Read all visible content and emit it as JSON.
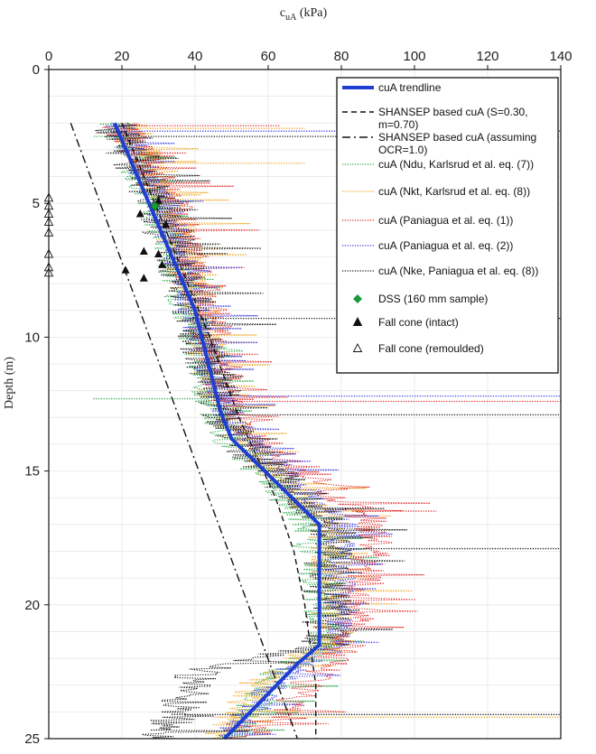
{
  "chart_data": {
    "type": "line",
    "title": "",
    "xlabel": "c",
    "xlabel_sub": "uA",
    "xlabel_unit": " (kPa)",
    "ylabel": "Depth (m)",
    "xlim": [
      0,
      140
    ],
    "ylim": [
      0,
      25
    ],
    "x_ticks": [
      0,
      20,
      40,
      60,
      80,
      100,
      120,
      140
    ],
    "y_ticks": [
      0,
      5,
      10,
      15,
      20,
      25
    ],
    "x_axis_position": "top",
    "y_inverted": true,
    "grid": true,
    "legend_position": "top-right",
    "colors": {
      "trendline": "#1f3fd0",
      "ndu": "#2aa84a",
      "nkt": "#f0a21a",
      "paniagua1": "#e02424",
      "paniagua2": "#3a3adf",
      "nke": "#111111",
      "dss": "#1a9a3a",
      "grid": "#e6e6e6"
    },
    "legend": [
      {
        "key": "trendline",
        "label": "cuA trendline"
      },
      {
        "key": "shansep",
        "label_lines": [
          "SHANSEP based cuA (S=0.30,",
          "m=0.70)"
        ]
      },
      {
        "key": "shansep_ocr1",
        "label_lines": [
          "SHANSEP based cuA (assuming",
          "OCR=1.0)"
        ]
      },
      {
        "key": "ndu",
        "label": "cuA (Ndu, Karlsrud et al. eq. (7))"
      },
      {
        "key": "nkt",
        "label": "cuA (Nkt, Karlsrud et al. eq. (8))"
      },
      {
        "key": "paniagua1",
        "label": "cuA (Paniagua et al. eq. (1))"
      },
      {
        "key": "paniagua2",
        "label": "cuA (Paniagua et al. eq. (2))"
      },
      {
        "key": "nke",
        "label": "cuA (Nke, Paniagua et al. eq. (8))"
      },
      {
        "key": "dss",
        "label": "DSS (160 mm sample)"
      },
      {
        "key": "fallcone_intact",
        "label": "Fall cone (intact)"
      },
      {
        "key": "fallcone_remoulded",
        "label": "Fall cone (remoulded)"
      }
    ],
    "series": [
      {
        "name": "cuA trendline",
        "key": "trendline",
        "style": "solid-thick",
        "points": [
          [
            18,
            2
          ],
          [
            40,
            9
          ],
          [
            47,
            12.8
          ],
          [
            50,
            13.8
          ],
          [
            74,
            17
          ],
          [
            74,
            21.5
          ],
          [
            68,
            22.2
          ],
          [
            48,
            25
          ]
        ]
      },
      {
        "name": "SHANSEP based cuA (S=0.30, m=0.70)",
        "key": "shansep",
        "style": "dashed",
        "points": [
          [
            20,
            2
          ],
          [
            32,
            6
          ],
          [
            44,
            10
          ],
          [
            52,
            13
          ],
          [
            62,
            16
          ],
          [
            67,
            18
          ],
          [
            70,
            20
          ],
          [
            72,
            22
          ],
          [
            73,
            23
          ],
          [
            73,
            25
          ]
        ]
      },
      {
        "name": "SHANSEP based cuA (assuming OCR=1.0)",
        "key": "shansep_ocr1",
        "style": "dashdot",
        "points": [
          [
            6,
            2
          ],
          [
            68,
            25
          ]
        ]
      },
      {
        "name": "cuA (Ndu, Karlsrud et al. eq. (7))",
        "key": "ndu",
        "style": "dotted",
        "base": [
          [
            17,
            2
          ],
          [
            28,
            5
          ],
          [
            37,
            9
          ],
          [
            44,
            12.5
          ],
          [
            48,
            13.8
          ],
          [
            70,
            17
          ],
          [
            75,
            21.5
          ],
          [
            62,
            22.5
          ],
          [
            48,
            25
          ]
        ],
        "amp": 5,
        "spike": [
          [
            12,
            2.5
          ],
          [
            12,
            12.3
          ]
        ]
      },
      {
        "name": "cuA (Nkt, Karlsrud et al. eq. (8))",
        "key": "nkt",
        "style": "dotted",
        "base": [
          [
            20,
            2
          ],
          [
            31,
            5
          ],
          [
            40,
            9
          ],
          [
            46,
            12.5
          ],
          [
            52,
            13.8
          ],
          [
            75,
            17
          ],
          [
            77,
            21.5
          ],
          [
            58,
            22.5
          ],
          [
            46,
            25
          ]
        ],
        "amp": 6,
        "spike": [
          [
            70,
            2.2
          ],
          [
            70,
            3.5
          ],
          [
            140,
            24.2
          ]
        ]
      },
      {
        "name": "cuA (Paniagua et al. eq. (1))",
        "key": "paniagua1",
        "style": "dotted",
        "base": [
          [
            18,
            2
          ],
          [
            32,
            5
          ],
          [
            42,
            9
          ],
          [
            48,
            12.5
          ],
          [
            56,
            13.8
          ],
          [
            88,
            17
          ],
          [
            82,
            21
          ],
          [
            76,
            22.3
          ],
          [
            52,
            25
          ]
        ],
        "amp": 6,
        "spike": [
          [
            63,
            2.1
          ],
          [
            106,
            16.5
          ],
          [
            140,
            12.4
          ]
        ]
      },
      {
        "name": "cuA (Paniagua et al. eq. (2))",
        "key": "paniagua2",
        "style": "dotted",
        "base": [
          [
            18,
            2
          ],
          [
            30,
            5
          ],
          [
            39,
            9
          ],
          [
            46,
            12.5
          ],
          [
            53,
            13.8
          ],
          [
            80,
            17
          ],
          [
            78,
            21.5
          ],
          [
            64,
            22.5
          ],
          [
            48,
            25
          ]
        ],
        "amp": 5,
        "spike": [
          [
            140,
            2.3
          ],
          [
            140,
            12.2
          ]
        ]
      },
      {
        "name": "cuA (Nke, Paniagua et al. eq. (8))",
        "key": "nke",
        "style": "dotted",
        "base": [
          [
            16,
            2
          ],
          [
            29,
            5
          ],
          [
            38,
            9
          ],
          [
            45,
            12.5
          ],
          [
            50,
            13.8
          ],
          [
            76,
            17
          ],
          [
            74,
            21.5
          ],
          [
            40,
            22.5
          ],
          [
            30,
            25
          ]
        ],
        "amp": 7,
        "spike": [
          [
            140,
            2.5
          ],
          [
            140,
            9.3
          ],
          [
            140,
            12.9
          ],
          [
            140,
            17.9
          ],
          [
            140,
            24.1
          ]
        ]
      }
    ],
    "dss_points": [
      [
        29,
        5.1
      ]
    ],
    "fallcone_intact": [
      [
        30,
        4.9
      ],
      [
        25,
        5.4
      ],
      [
        32,
        5.8
      ],
      [
        26,
        6.8
      ],
      [
        21,
        7.5
      ],
      [
        26,
        7.8
      ],
      [
        30,
        6.9
      ],
      [
        31,
        7.3
      ]
    ],
    "fallcone_remoulded": [
      [
        0,
        4.8
      ],
      [
        0,
        5.1
      ],
      [
        0,
        5.4
      ],
      [
        0,
        5.7
      ],
      [
        0,
        6.1
      ],
      [
        0,
        6.9
      ],
      [
        0,
        7.4
      ],
      [
        0,
        7.6
      ]
    ]
  }
}
